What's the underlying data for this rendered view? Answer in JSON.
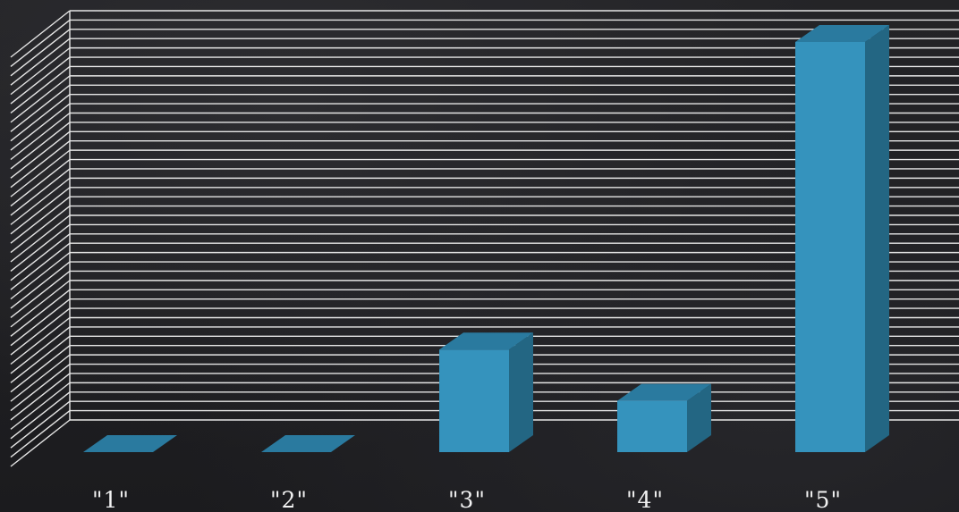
{
  "chart_data": {
    "type": "bar",
    "categories": [
      "\"1\"",
      "\"2\"",
      "\"3\"",
      "\"4\"",
      "\"5\""
    ],
    "values": [
      0,
      0,
      4,
      2,
      16
    ],
    "ylim": [
      0,
      16
    ],
    "grid": true,
    "three_d": true,
    "title": "",
    "xlabel": "",
    "ylabel": "",
    "colors": {
      "background": "#1f1f22",
      "grid": "#e6e6e6",
      "bar_front": "#3593bd",
      "bar_top": "#2a7a9f",
      "bar_side": "#236683",
      "label": "#f2f2f2"
    }
  }
}
